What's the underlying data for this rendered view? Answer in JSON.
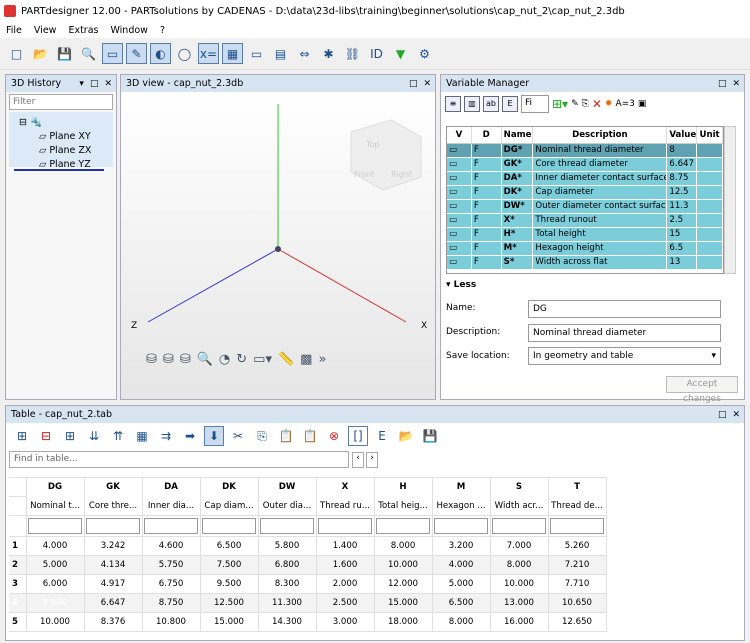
{
  "title": "PARTdesigner 12.00 - PARTsolutions by CADENAS - D:\\data\\23d-libs\\training\\beginner\\solutions\\cap_nut_2\\cap_nut_2.3db",
  "menu": [
    "File",
    "View",
    "Extras",
    "Window",
    "?"
  ],
  "history": {
    "title": "3D History",
    "filter": "Filter",
    "items": [
      "Plane XY",
      "Plane ZX",
      "Plane YZ"
    ]
  },
  "view": {
    "title": "3D view - cap_nut_2.3db",
    "axis_x": "X",
    "axis_z": "Z",
    "cube_top": "Top",
    "cube_front": "Front",
    "cube_right": "Right",
    "more": "»"
  },
  "vm": {
    "title": "Variable Manager",
    "search": "Fi",
    "headers": [
      "V",
      "D",
      "Name",
      "Description",
      "Value",
      "Unit"
    ],
    "rows": [
      [
        "DG*",
        "Nominal thread diameter",
        "8"
      ],
      [
        "GK*",
        "Core thread diameter",
        "6.647"
      ],
      [
        "DA*",
        "Inner diameter contact surface",
        "8.75"
      ],
      [
        "DK*",
        "Cap diameter",
        "12.5"
      ],
      [
        "DW*",
        "Outer diameter contact surface",
        "11.3"
      ],
      [
        "X*",
        "Thread runout",
        "2.5"
      ],
      [
        "H*",
        "Total height",
        "15"
      ],
      [
        "M*",
        "Hexagon height",
        "6.5"
      ],
      [
        "S*",
        "Width across flat",
        "13"
      ]
    ],
    "less": "Less",
    "name_label": "Name:",
    "name_value": "DG",
    "desc_label": "Description:",
    "desc_value": "Nominal thread diameter",
    "save_label": "Save location:",
    "save_value": "In geometry and table",
    "accept": "Accept changes"
  },
  "table": {
    "title": "Table - cap_nut_2.tab",
    "find": "Find in table...",
    "columns": [
      [
        "DG",
        "Nominal t..."
      ],
      [
        "GK",
        "Core thre..."
      ],
      [
        "DA",
        "Inner dia..."
      ],
      [
        "DK",
        "Cap diam..."
      ],
      [
        "DW",
        "Outer dia..."
      ],
      [
        "X",
        "Thread ru..."
      ],
      [
        "H",
        "Total heig..."
      ],
      [
        "M",
        "Hexagon ..."
      ],
      [
        "S",
        "Width acr..."
      ],
      [
        "T",
        "Thread de..."
      ]
    ],
    "rows": [
      [
        "1",
        "4.000",
        "3.242",
        "4.600",
        "6.500",
        "5.800",
        "1.400",
        "8.000",
        "3.200",
        "7.000",
        "5.260"
      ],
      [
        "2",
        "5.000",
        "4.134",
        "5.750",
        "7.500",
        "6.800",
        "1.600",
        "10.000",
        "4.000",
        "8.000",
        "7.210"
      ],
      [
        "3",
        "6.000",
        "4.917",
        "6.750",
        "9.500",
        "8.300",
        "2.000",
        "12.000",
        "5.000",
        "10.000",
        "7.710"
      ],
      [
        "4",
        "8.000",
        "6.647",
        "8.750",
        "12.500",
        "11.300",
        "2.500",
        "15.000",
        "6.500",
        "13.000",
        "10.650"
      ],
      [
        "5",
        "10.000",
        "8.376",
        "10.800",
        "15.000",
        "14.300",
        "3.000",
        "18.000",
        "8.000",
        "16.000",
        "12.650"
      ]
    ],
    "selected_row": 4
  },
  "colors": {
    "accent": "#7bcdda",
    "selection": "#7f9db5",
    "panel_header": "#d7e4f2"
  }
}
